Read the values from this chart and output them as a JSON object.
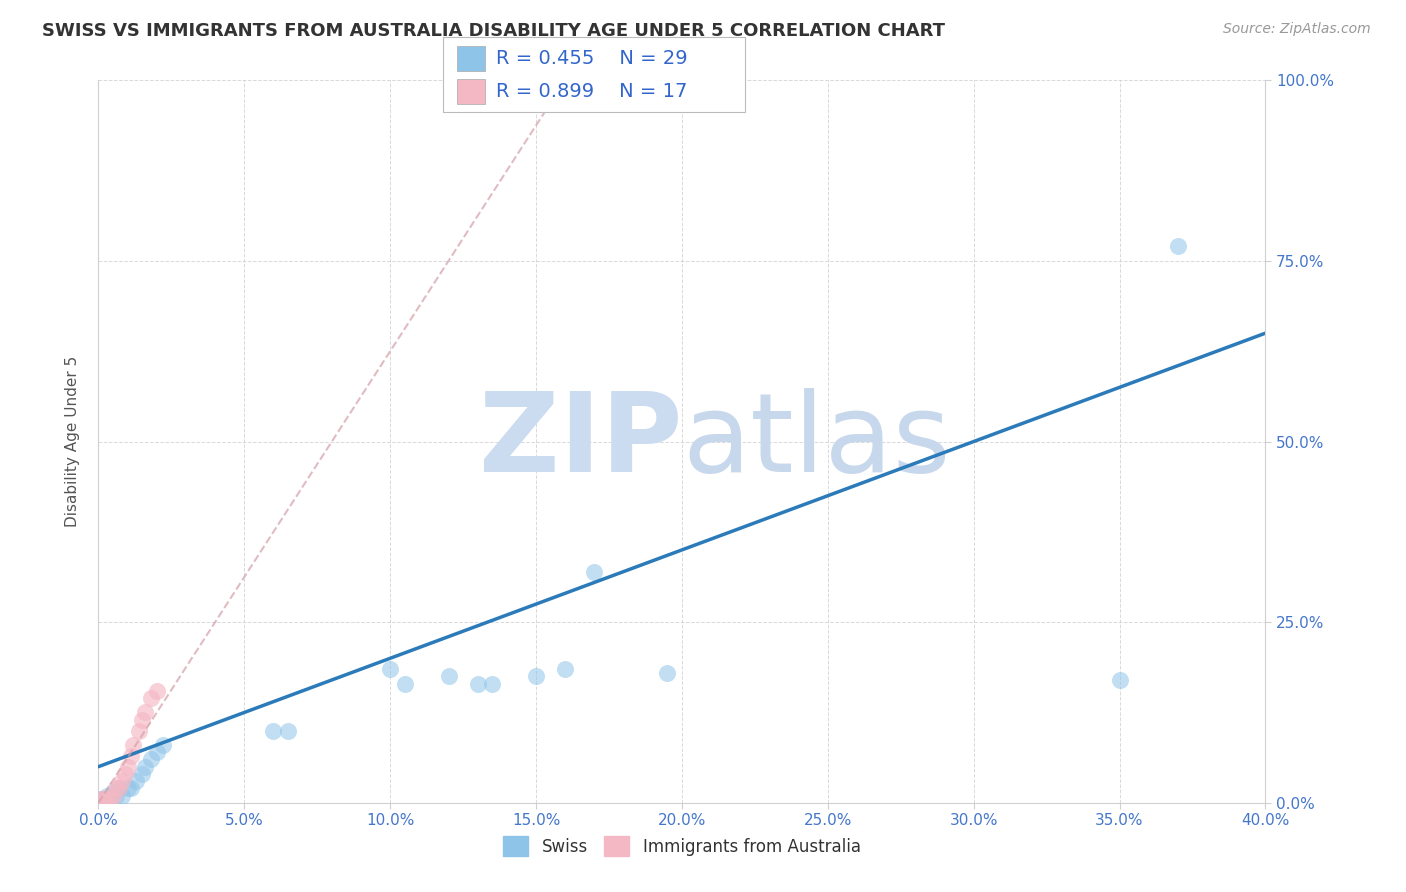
{
  "title": "SWISS VS IMMIGRANTS FROM AUSTRALIA DISABILITY AGE UNDER 5 CORRELATION CHART",
  "source": "Source: ZipAtlas.com",
  "ylabel": "Disability Age Under 5",
  "xlim": [
    0.0,
    0.4
  ],
  "ylim": [
    0.0,
    1.0
  ],
  "xticks": [
    0.0,
    0.05,
    0.1,
    0.15,
    0.2,
    0.25,
    0.3,
    0.35,
    0.4
  ],
  "yticks": [
    0.0,
    0.25,
    0.5,
    0.75,
    1.0
  ],
  "xtick_labels": [
    "0.0%",
    "5.0%",
    "10.0%",
    "15.0%",
    "20.0%",
    "25.0%",
    "30.0%",
    "35.0%",
    "40.0%"
  ],
  "ytick_labels": [
    "0.0%",
    "25.0%",
    "50.0%",
    "75.0%",
    "100.0%"
  ],
  "swiss_x": [
    0.001,
    0.002,
    0.003,
    0.004,
    0.005,
    0.006,
    0.007,
    0.008,
    0.01,
    0.011,
    0.013,
    0.015,
    0.016,
    0.018,
    0.02,
    0.022,
    0.06,
    0.065,
    0.1,
    0.105,
    0.12,
    0.13,
    0.135,
    0.15,
    0.16,
    0.17,
    0.195,
    0.35,
    0.37
  ],
  "swiss_y": [
    0.005,
    0.005,
    0.01,
    0.005,
    0.015,
    0.01,
    0.02,
    0.01,
    0.02,
    0.02,
    0.03,
    0.04,
    0.05,
    0.06,
    0.07,
    0.08,
    0.1,
    0.1,
    0.185,
    0.165,
    0.175,
    0.165,
    0.165,
    0.175,
    0.185,
    0.32,
    0.18,
    0.17,
    0.77
  ],
  "aus_x": [
    0.001,
    0.002,
    0.003,
    0.004,
    0.005,
    0.006,
    0.007,
    0.008,
    0.009,
    0.01,
    0.011,
    0.012,
    0.014,
    0.015,
    0.016,
    0.018,
    0.02
  ],
  "aus_y": [
    0.005,
    0.005,
    0.005,
    0.005,
    0.01,
    0.02,
    0.02,
    0.03,
    0.04,
    0.05,
    0.065,
    0.08,
    0.1,
    0.115,
    0.125,
    0.145,
    0.155
  ],
  "swiss_line_x": [
    0.0,
    0.4
  ],
  "swiss_line_y": [
    0.05,
    0.65
  ],
  "aus_line_x": [
    0.0,
    0.16
  ],
  "aus_line_y": [
    0.0,
    1.0
  ],
  "swiss_R": 0.455,
  "swiss_N": 29,
  "aus_R": 0.899,
  "aus_N": 17,
  "blue_color": "#8ec4e8",
  "blue_line_color": "#2b7bba",
  "pink_color": "#f4b8c4",
  "pink_line_color": "#d4a0a8",
  "watermark_zip_color": "#ccdcf0",
  "watermark_atlas_color": "#c8d8ec",
  "background_color": "#ffffff",
  "grid_color": "#d0d0d0",
  "title_color": "#333333",
  "axis_label_color": "#555555",
  "tick_color": "#4477cc",
  "legend_R_color": "#3366cc",
  "title_fontsize": 13,
  "source_fontsize": 10,
  "tick_fontsize": 11,
  "ylabel_fontsize": 11,
  "legend_fontsize": 14
}
